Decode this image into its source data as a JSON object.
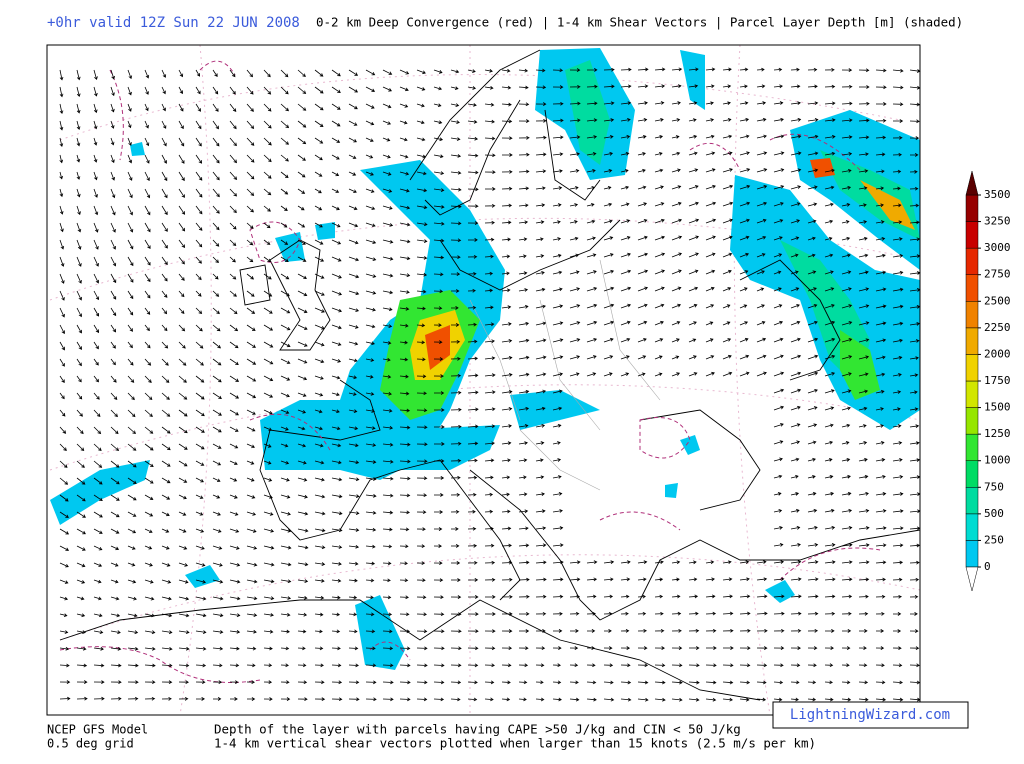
{
  "header": {
    "valid": "+0hr valid 12Z Sun 22 JUN 2008",
    "fields": "0-2 km Deep Convergence (red) | 1-4 km Shear Vectors | Parcel Layer Depth [m] (shaded)"
  },
  "legend": {
    "ticks": [
      0,
      250,
      500,
      750,
      1000,
      1250,
      1500,
      1750,
      2000,
      2250,
      2500,
      2750,
      3000,
      3250,
      3500
    ],
    "colors": [
      "#00c8f0",
      "#00dcd2",
      "#00dca0",
      "#00dc64",
      "#32e632",
      "#96e600",
      "#d2e600",
      "#f0d200",
      "#f0aa00",
      "#f08200",
      "#f05000",
      "#e62800",
      "#c80000",
      "#960000"
    ]
  },
  "footer": {
    "model": "NCEP GFS Model",
    "grid": "0.5 deg grid",
    "line1": "Depth of the layer with parcels having CAPE >50 J/kg and CIN < 50 J/kg",
    "line2": "1-4 km vertical shear vectors plotted when larger than 15 knots (2.5 m/s per km)",
    "badge": "LightningWizard.com"
  }
}
